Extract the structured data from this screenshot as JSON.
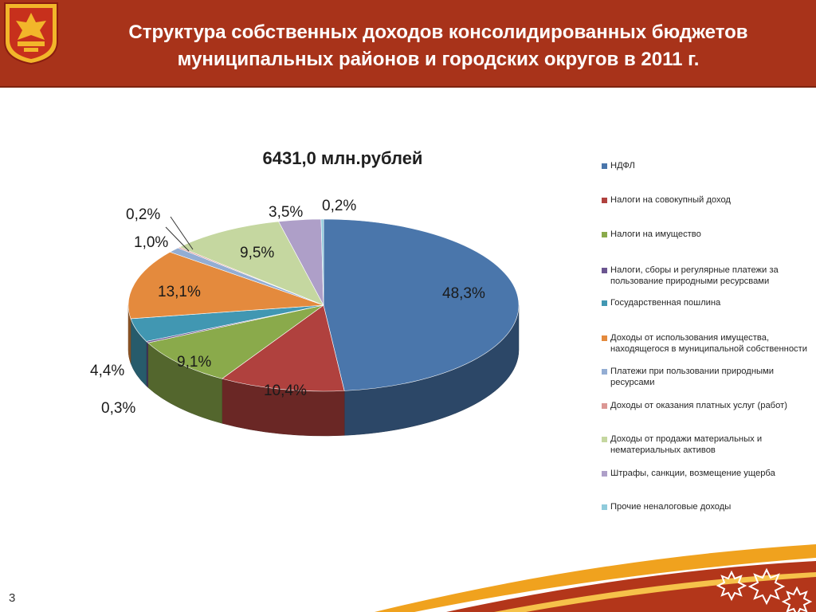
{
  "header": {
    "title_line1": "Структура  собственных доходов консолидированных бюджетов",
    "title_line2": "муниципальных районов и городских округов в 2011 г."
  },
  "page_number": "3",
  "colors": {
    "header_bg": "#a8331a",
    "accent_orange": "#f0a21e"
  },
  "chart_data": {
    "type": "pie",
    "title": "6431,0 млн.рублей",
    "legend_position": "right",
    "slices": [
      {
        "name": "НДФЛ",
        "value": 48.3,
        "label": "48,3%",
        "color": "#4a76ab"
      },
      {
        "name": "Налоги на совокупный доход",
        "value": 10.4,
        "label": "10,4%",
        "color": "#b0413e"
      },
      {
        "name": "Налоги на имущество",
        "value": 9.1,
        "label": "9,1%",
        "color": "#8aaa4b"
      },
      {
        "name": "Налоги,  сборы и регулярные платежи за пользование природными ресурсвами",
        "value": 0.3,
        "label": "0,3%",
        "color": "#6b5590"
      },
      {
        "name": "Государственная пошлина",
        "value": 4.4,
        "label": "4,4%",
        "color": "#4197b2"
      },
      {
        "name": "Доходы от использования имущества, находящегося в муниципальной собственности",
        "value": 13.1,
        "label": "13,1%",
        "color": "#e48a3d"
      },
      {
        "name": "Платежи при пользовании природными ресурсами",
        "value": 1.0,
        "label": "1,0%",
        "color": "#93add3"
      },
      {
        "name": "Доходы от оказания платных  услуг (работ)",
        "value": 0.2,
        "label": "0,2%",
        "color": "#db9794"
      },
      {
        "name": "Доходы от продажи материальных и нематериальных активов",
        "value": 9.5,
        "label": "9,5%",
        "color": "#c5d7a0"
      },
      {
        "name": "Штрафы, санкции, возмещение ущерба",
        "value": 3.5,
        "label": "3,5%",
        "color": "#ae9fc8"
      },
      {
        "name": "Прочие неналоговые доходы",
        "value": 0.2,
        "label": "0,2%",
        "color": "#8fcbdb"
      }
    ]
  }
}
